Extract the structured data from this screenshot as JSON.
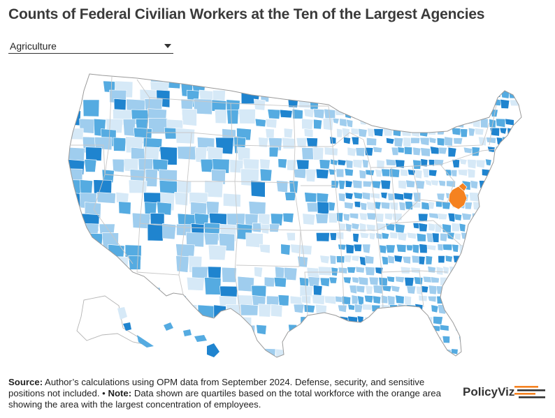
{
  "title": "Counts of Federal Civilian Workers at the Ten of the Largest Agencies",
  "agency_select": {
    "selected": "Agriculture"
  },
  "map": {
    "legend_meaning": "quartiles based on total workforce; orange = largest concentration",
    "colors": {
      "q1": "#d6e9f7",
      "q2": "#9fcdee",
      "q3": "#55abe1",
      "q4": "#1f84cf",
      "highlight": "#f58220",
      "background": "#ffffff",
      "border": "#ffffff",
      "outline": "#9a9a9a"
    }
  },
  "footer": {
    "source_label": "Source:",
    "source_text": " Author’s calculations using OPM data from September 2024. Defense, security, and sensitive positions not included. • ",
    "note_label": "Note:",
    "note_text": " Data shown are quartiles based on the total workforce with the orange area showing the area with the largest concentration of employees."
  },
  "branding": {
    "logo_text": "PolicyViz",
    "accent": "#f58220",
    "accent_dark": "#333333"
  }
}
